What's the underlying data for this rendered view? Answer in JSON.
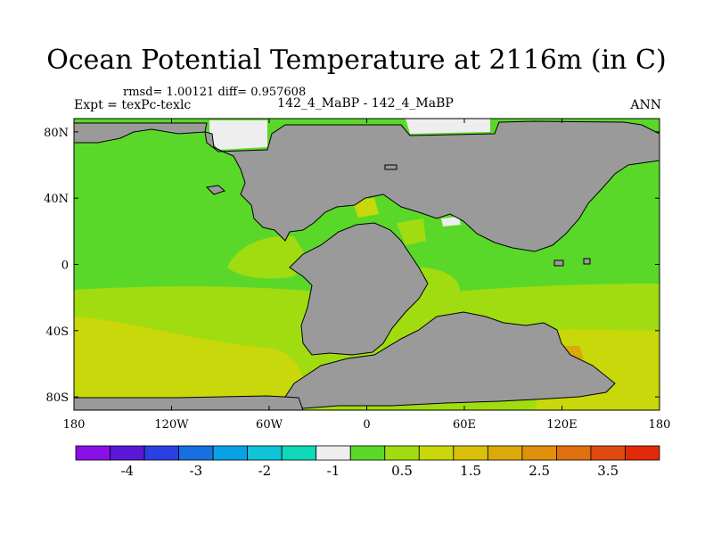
{
  "chart_data": {
    "type": "heatmap",
    "title": "Ocean Potential Temperature at 2116m (in C)",
    "stats_text": "rmsd= 1.00121 diff= 0.957608",
    "left_label": "Expt = texPc-texlc",
    "center_label": "142_4_MaBP - 142_4_MaBP",
    "right_label": "ANN",
    "x_ticks": [
      "180",
      "120W",
      "60W",
      "0",
      "60E",
      "120E",
      "180"
    ],
    "y_ticks": [
      "80N",
      "40N",
      "0",
      "40S",
      "80S"
    ],
    "xlim": [
      -180,
      180
    ],
    "ylim": [
      -88,
      88
    ],
    "land_color": "#9a9a9a",
    "colorbar": {
      "colors": [
        "#8a10e6",
        "#5a18d6",
        "#2a40e0",
        "#1870e0",
        "#0aa0e6",
        "#10c4d8",
        "#10d8b8",
        "#eeeeee",
        "#5ad82a",
        "#a0dc10",
        "#c8d80a",
        "#d8c00a",
        "#dca80a",
        "#e0900a",
        "#e07010",
        "#e04a10",
        "#e02a0a"
      ],
      "labels": [
        "-4",
        "-3",
        "-2",
        "-1",
        "0.5",
        "1.5",
        "2.5",
        "3.5"
      ]
    },
    "field_levels": {
      "white": "#eeeeee",
      "green": "#5ad82a",
      "lightgreen": "#a0dc10",
      "yellowgreen": "#c8d80a",
      "yellow": "#d8c00a",
      "orange": "#dca80a"
    }
  }
}
